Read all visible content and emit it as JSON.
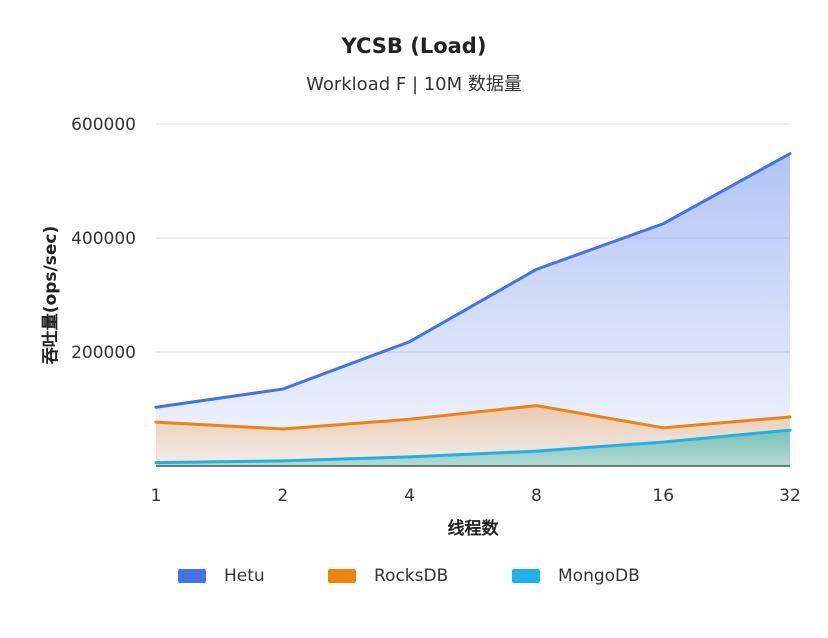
{
  "chart_data": {
    "type": "area",
    "title": "YCSB (Load)",
    "subtitle": "Workload F  |  10M 数据量",
    "xlabel": "线程数",
    "ylabel": "吞吐量(ops/sec)",
    "categories": [
      "1",
      "2",
      "4",
      "8",
      "16",
      "32"
    ],
    "ylim": [
      0,
      600000
    ],
    "yticks": [
      "200000",
      "400000",
      "600000"
    ],
    "grid": true,
    "legend_position": "bottom",
    "series": [
      {
        "name": "Hetu",
        "color": "#4472E8",
        "values": [
          103000,
          135000,
          218000,
          345000,
          425000,
          548000
        ]
      },
      {
        "name": "RocksDB",
        "color": "#F0820F",
        "values": [
          77000,
          65000,
          82000,
          106000,
          67000,
          86000
        ]
      },
      {
        "name": "MongoDB",
        "color": "#1FB2E8",
        "values": [
          6000,
          9000,
          16000,
          26000,
          42000,
          63000
        ]
      }
    ]
  }
}
